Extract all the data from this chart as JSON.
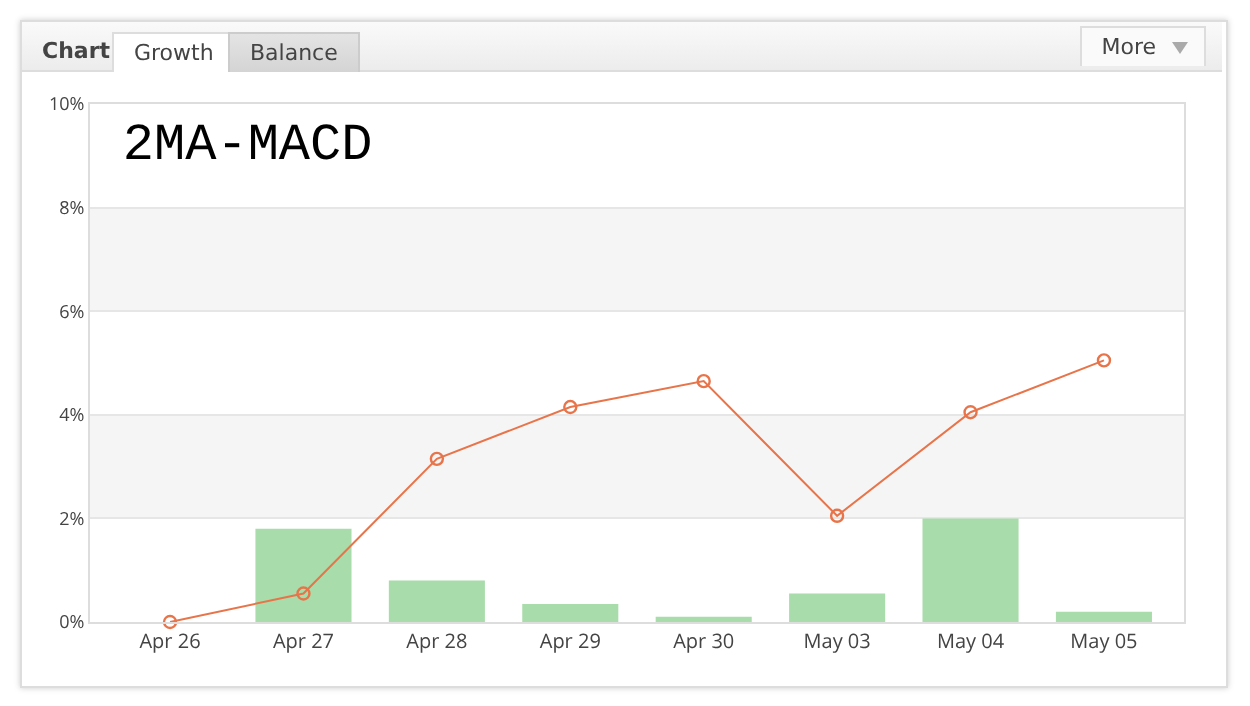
{
  "chart_data": {
    "type": "bar",
    "title": "2MA-MACD",
    "annotations": [
      "Chart",
      "Growth",
      "Balance",
      "More"
    ],
    "categories": [
      "Apr 26",
      "Apr 27",
      "Apr 28",
      "Apr 29",
      "Apr 30",
      "May 03",
      "May 04",
      "May 05"
    ],
    "series": [
      {
        "type": "bar",
        "color": "#a8dcaa",
        "values": [
          0,
          1.8,
          0.8,
          0.35,
          0.1,
          0.55,
          2.0,
          0.2
        ]
      },
      {
        "type": "line",
        "color": "#e8744a",
        "values": [
          0,
          0.55,
          3.15,
          4.15,
          4.65,
          2.05,
          4.05,
          5.05
        ]
      }
    ],
    "ylim": [
      0,
      10
    ],
    "yticks": [
      {
        "value": 0,
        "label": "0%"
      },
      {
        "value": 2,
        "label": "2%"
      },
      {
        "value": 4,
        "label": "4%"
      },
      {
        "value": 6,
        "label": "6%"
      },
      {
        "value": 8,
        "label": "8%"
      },
      {
        "value": 10,
        "label": "10%"
      }
    ],
    "bands": [
      {
        "axis": "y",
        "from": 2,
        "to": 4,
        "color": "#f5f5f5"
      },
      {
        "axis": "y",
        "from": 6,
        "to": 8,
        "color": "#f5f5f5"
      }
    ],
    "grid": "y",
    "marker": "circle",
    "line_style": "solid"
  }
}
